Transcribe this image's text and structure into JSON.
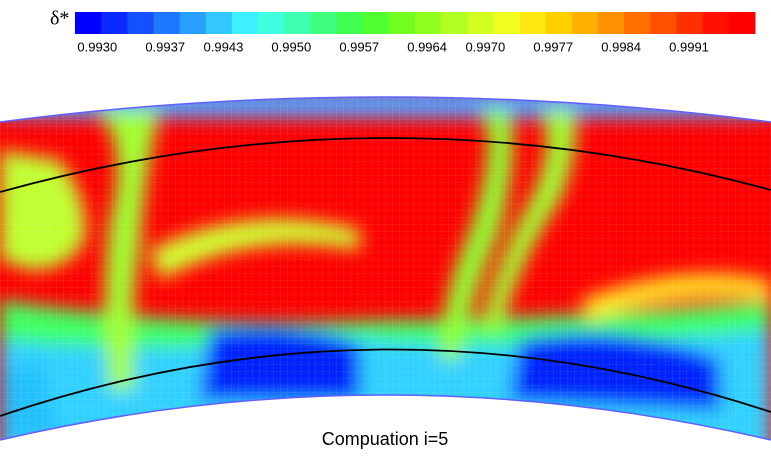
{
  "chart_data": {
    "type": "contour",
    "title": "Compuation i=5",
    "colorbar_label": "δ*",
    "clim": [
      0.99277,
      0.99978
    ],
    "colors": [
      "#0000ff",
      "#0a28ff",
      "#1450ff",
      "#1e78ff",
      "#28a0ff",
      "#32c8ff",
      "#3cf0ff",
      "#40ffe0",
      "#40ffb0",
      "#40ff80",
      "#40ff50",
      "#50ff30",
      "#70ff20",
      "#90ff20",
      "#b0ff20",
      "#d0ff20",
      "#f0ff20",
      "#ffe810",
      "#ffd000",
      "#ffb000",
      "#ff9000",
      "#ff7000",
      "#ff5000",
      "#ff3000",
      "#ff1000",
      "#ff0000"
    ],
    "ticks": [
      {
        "value": 0.993,
        "label": "0.9930"
      },
      {
        "value": 0.9937,
        "label": "0.9937"
      },
      {
        "value": 0.9943,
        "label": "0.9943"
      },
      {
        "value": 0.995,
        "label": "0.9950"
      },
      {
        "value": 0.9957,
        "label": "0.9957"
      },
      {
        "value": 0.9964,
        "label": "0.9964"
      },
      {
        "value": 0.997,
        "label": "0.9970"
      },
      {
        "value": 0.9977,
        "label": "0.9977"
      },
      {
        "value": 0.9984,
        "label": "0.9984"
      },
      {
        "value": 0.9991,
        "label": "0.9991"
      }
    ]
  }
}
